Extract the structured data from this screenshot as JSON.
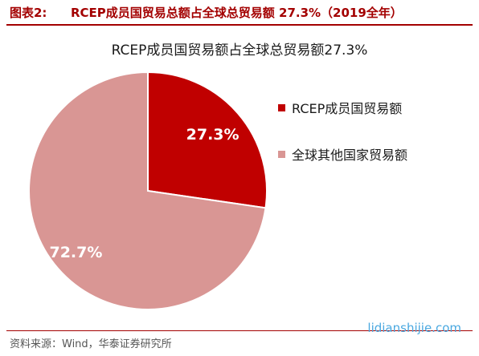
{
  "figure": {
    "label": "图表2:",
    "title": "RCEP成员国贸易总额占全球总贸易额 27.3%（2019全年）"
  },
  "chart_data": {
    "type": "pie",
    "title": "RCEP成员国贸易额占全球总贸易额27.3%",
    "slices": [
      {
        "name": "RCEP成员国贸易额",
        "value": 27.3,
        "label": "27.3%",
        "color": "#c00000"
      },
      {
        "name": "全球其他国家贸易额",
        "value": 72.7,
        "label": "72.7%",
        "color": "#d99694"
      }
    ],
    "legend_position": "right",
    "start_angle_deg": 0,
    "direction": "clockwise"
  },
  "source": "资料来源：Wind，华泰证券研究所",
  "watermark": "lidianshijie.com"
}
